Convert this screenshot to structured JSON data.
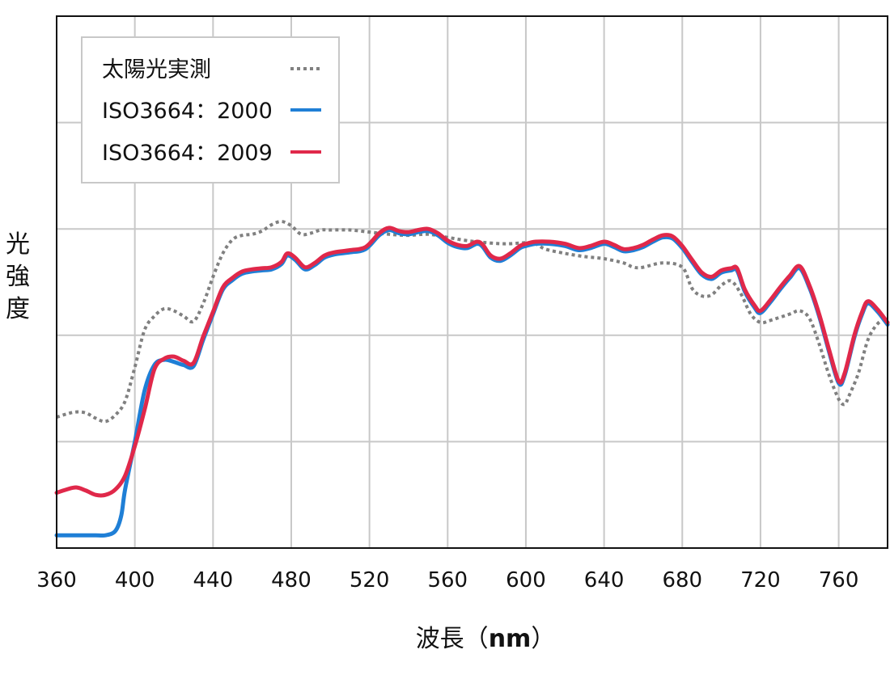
{
  "chart_data": {
    "type": "line",
    "title": "",
    "xlabel": "波長（nm）",
    "xlabel_main": "波長（",
    "xlabel_unit": "nm",
    "xlabel_close": "）",
    "ylabel": "光強度",
    "xlim": [
      360,
      785
    ],
    "ylim": [
      0,
      5
    ],
    "x_ticks": [
      360,
      400,
      440,
      480,
      520,
      560,
      600,
      640,
      680,
      720,
      760
    ],
    "y_grid": [
      1,
      2,
      3,
      4
    ],
    "grid": true,
    "legend_position": "top-left",
    "series": [
      {
        "name": "太陽光実測",
        "style": "dotted",
        "color": "#808080",
        "points": [
          [
            360,
            1.23
          ],
          [
            365,
            1.26
          ],
          [
            370,
            1.28
          ],
          [
            375,
            1.27
          ],
          [
            380,
            1.22
          ],
          [
            385,
            1.19
          ],
          [
            390,
            1.25
          ],
          [
            395,
            1.38
          ],
          [
            400,
            1.7
          ],
          [
            405,
            2.05
          ],
          [
            410,
            2.18
          ],
          [
            415,
            2.25
          ],
          [
            420,
            2.23
          ],
          [
            425,
            2.18
          ],
          [
            430,
            2.13
          ],
          [
            435,
            2.3
          ],
          [
            440,
            2.55
          ],
          [
            445,
            2.77
          ],
          [
            450,
            2.9
          ],
          [
            455,
            2.94
          ],
          [
            460,
            2.95
          ],
          [
            465,
            2.98
          ],
          [
            470,
            3.04
          ],
          [
            475,
            3.07
          ],
          [
            480,
            3.03
          ],
          [
            485,
            2.95
          ],
          [
            490,
            2.96
          ],
          [
            495,
            2.99
          ],
          [
            500,
            2.99
          ],
          [
            510,
            2.99
          ],
          [
            520,
            2.97
          ],
          [
            530,
            2.95
          ],
          [
            540,
            2.94
          ],
          [
            550,
            2.95
          ],
          [
            560,
            2.92
          ],
          [
            570,
            2.89
          ],
          [
            580,
            2.87
          ],
          [
            590,
            2.86
          ],
          [
            600,
            2.87
          ],
          [
            605,
            2.86
          ],
          [
            610,
            2.81
          ],
          [
            620,
            2.77
          ],
          [
            630,
            2.74
          ],
          [
            640,
            2.72
          ],
          [
            650,
            2.68
          ],
          [
            655,
            2.64
          ],
          [
            660,
            2.64
          ],
          [
            670,
            2.68
          ],
          [
            680,
            2.64
          ],
          [
            685,
            2.44
          ],
          [
            690,
            2.37
          ],
          [
            695,
            2.38
          ],
          [
            700,
            2.47
          ],
          [
            705,
            2.51
          ],
          [
            710,
            2.39
          ],
          [
            715,
            2.2
          ],
          [
            720,
            2.12
          ],
          [
            725,
            2.14
          ],
          [
            735,
            2.2
          ],
          [
            740,
            2.23
          ],
          [
            745,
            2.16
          ],
          [
            750,
            1.92
          ],
          [
            755,
            1.63
          ],
          [
            760,
            1.4
          ],
          [
            763,
            1.35
          ],
          [
            765,
            1.42
          ],
          [
            770,
            1.64
          ],
          [
            775,
            1.96
          ],
          [
            780,
            2.11
          ],
          [
            785,
            2.17
          ]
        ]
      },
      {
        "name": "ISO3664：2000",
        "style": "solid",
        "color": "#1f7fd6",
        "points": [
          [
            360,
            0.12
          ],
          [
            365,
            0.12
          ],
          [
            370,
            0.12
          ],
          [
            375,
            0.12
          ],
          [
            380,
            0.12
          ],
          [
            385,
            0.12
          ],
          [
            390,
            0.16
          ],
          [
            393,
            0.3
          ],
          [
            395,
            0.55
          ],
          [
            400,
            1.0
          ],
          [
            405,
            1.48
          ],
          [
            410,
            1.72
          ],
          [
            415,
            1.77
          ],
          [
            420,
            1.75
          ],
          [
            425,
            1.72
          ],
          [
            430,
            1.71
          ],
          [
            435,
            1.96
          ],
          [
            440,
            2.2
          ],
          [
            445,
            2.43
          ],
          [
            450,
            2.52
          ],
          [
            455,
            2.58
          ],
          [
            460,
            2.6
          ],
          [
            465,
            2.61
          ],
          [
            470,
            2.62
          ],
          [
            475,
            2.67
          ],
          [
            478,
            2.75
          ],
          [
            482,
            2.71
          ],
          [
            487,
            2.62
          ],
          [
            492,
            2.66
          ],
          [
            497,
            2.73
          ],
          [
            502,
            2.76
          ],
          [
            510,
            2.78
          ],
          [
            518,
            2.81
          ],
          [
            525,
            2.94
          ],
          [
            530,
            2.99
          ],
          [
            535,
            2.96
          ],
          [
            540,
            2.95
          ],
          [
            545,
            2.97
          ],
          [
            550,
            2.98
          ],
          [
            555,
            2.94
          ],
          [
            560,
            2.87
          ],
          [
            565,
            2.83
          ],
          [
            570,
            2.82
          ],
          [
            575,
            2.86
          ],
          [
            578,
            2.83
          ],
          [
            582,
            2.73
          ],
          [
            587,
            2.7
          ],
          [
            592,
            2.75
          ],
          [
            597,
            2.82
          ],
          [
            600,
            2.84
          ],
          [
            605,
            2.86
          ],
          [
            612,
            2.86
          ],
          [
            620,
            2.84
          ],
          [
            627,
            2.8
          ],
          [
            633,
            2.82
          ],
          [
            640,
            2.86
          ],
          [
            645,
            2.83
          ],
          [
            650,
            2.79
          ],
          [
            655,
            2.8
          ],
          [
            660,
            2.83
          ],
          [
            665,
            2.88
          ],
          [
            670,
            2.92
          ],
          [
            675,
            2.91
          ],
          [
            680,
            2.82
          ],
          [
            685,
            2.69
          ],
          [
            690,
            2.57
          ],
          [
            695,
            2.53
          ],
          [
            700,
            2.59
          ],
          [
            705,
            2.61
          ],
          [
            708,
            2.61
          ],
          [
            712,
            2.41
          ],
          [
            717,
            2.26
          ],
          [
            720,
            2.21
          ],
          [
            725,
            2.31
          ],
          [
            730,
            2.43
          ],
          [
            735,
            2.54
          ],
          [
            740,
            2.63
          ],
          [
            745,
            2.45
          ],
          [
            750,
            2.18
          ],
          [
            755,
            1.85
          ],
          [
            760,
            1.55
          ],
          [
            763,
            1.62
          ],
          [
            768,
            1.98
          ],
          [
            772,
            2.2
          ],
          [
            775,
            2.3
          ],
          [
            780,
            2.22
          ],
          [
            785,
            2.1
          ]
        ]
      },
      {
        "name": "ISO3664：2009",
        "style": "solid",
        "color": "#e0284a",
        "points": [
          [
            360,
            0.52
          ],
          [
            365,
            0.55
          ],
          [
            370,
            0.57
          ],
          [
            375,
            0.54
          ],
          [
            380,
            0.5
          ],
          [
            385,
            0.5
          ],
          [
            390,
            0.55
          ],
          [
            395,
            0.68
          ],
          [
            400,
            0.96
          ],
          [
            405,
            1.3
          ],
          [
            410,
            1.68
          ],
          [
            415,
            1.78
          ],
          [
            420,
            1.8
          ],
          [
            425,
            1.76
          ],
          [
            430,
            1.74
          ],
          [
            435,
            1.99
          ],
          [
            440,
            2.22
          ],
          [
            445,
            2.45
          ],
          [
            450,
            2.54
          ],
          [
            455,
            2.6
          ],
          [
            460,
            2.62
          ],
          [
            465,
            2.63
          ],
          [
            470,
            2.64
          ],
          [
            475,
            2.69
          ],
          [
            478,
            2.77
          ],
          [
            482,
            2.73
          ],
          [
            487,
            2.64
          ],
          [
            492,
            2.68
          ],
          [
            497,
            2.75
          ],
          [
            502,
            2.78
          ],
          [
            510,
            2.8
          ],
          [
            518,
            2.83
          ],
          [
            525,
            2.96
          ],
          [
            530,
            3.01
          ],
          [
            535,
            2.98
          ],
          [
            540,
            2.97
          ],
          [
            545,
            2.99
          ],
          [
            550,
            3.0
          ],
          [
            555,
            2.96
          ],
          [
            560,
            2.89
          ],
          [
            565,
            2.85
          ],
          [
            570,
            2.84
          ],
          [
            575,
            2.88
          ],
          [
            578,
            2.85
          ],
          [
            582,
            2.75
          ],
          [
            587,
            2.72
          ],
          [
            592,
            2.77
          ],
          [
            597,
            2.84
          ],
          [
            600,
            2.86
          ],
          [
            605,
            2.88
          ],
          [
            612,
            2.88
          ],
          [
            620,
            2.86
          ],
          [
            627,
            2.82
          ],
          [
            633,
            2.84
          ],
          [
            640,
            2.88
          ],
          [
            645,
            2.85
          ],
          [
            650,
            2.81
          ],
          [
            655,
            2.82
          ],
          [
            660,
            2.85
          ],
          [
            665,
            2.9
          ],
          [
            670,
            2.94
          ],
          [
            675,
            2.93
          ],
          [
            680,
            2.84
          ],
          [
            685,
            2.71
          ],
          [
            690,
            2.59
          ],
          [
            695,
            2.55
          ],
          [
            700,
            2.61
          ],
          [
            705,
            2.63
          ],
          [
            708,
            2.63
          ],
          [
            712,
            2.43
          ],
          [
            717,
            2.28
          ],
          [
            720,
            2.23
          ],
          [
            725,
            2.33
          ],
          [
            730,
            2.45
          ],
          [
            735,
            2.56
          ],
          [
            740,
            2.65
          ],
          [
            745,
            2.47
          ],
          [
            750,
            2.2
          ],
          [
            755,
            1.87
          ],
          [
            760,
            1.57
          ],
          [
            763,
            1.64
          ],
          [
            768,
            2.0
          ],
          [
            772,
            2.22
          ],
          [
            775,
            2.32
          ],
          [
            780,
            2.24
          ],
          [
            785,
            2.12
          ]
        ]
      }
    ]
  }
}
